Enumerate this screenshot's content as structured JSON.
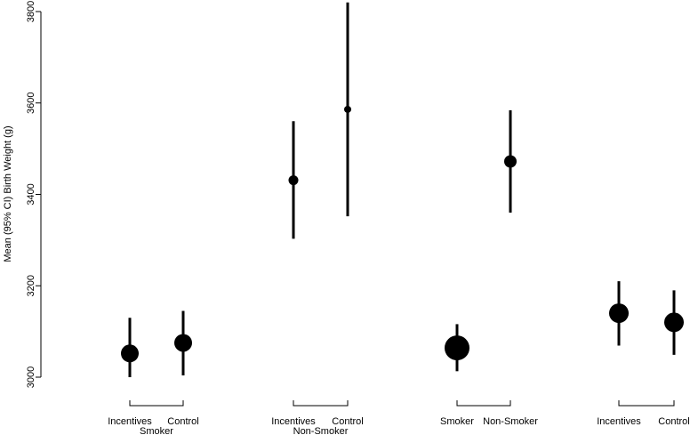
{
  "chart_data": {
    "type": "scatter",
    "subtype": "point-with-confidence-interval",
    "ylabel": "Mean (95% CI) Birth Weight (g)",
    "ylim": [
      3000,
      3800
    ],
    "yticks": [
      3000,
      3200,
      3400,
      3600,
      3800
    ],
    "grid": false,
    "legend": "none",
    "marker_color": "#000000",
    "groups": [
      {
        "label": "Smoker",
        "points": [
          {
            "category": "Incentives",
            "mean": 3052,
            "ci_low": 2975,
            "ci_high": 3130,
            "marker_size": 10
          },
          {
            "category": "Control",
            "mean": 3075,
            "ci_low": 3004,
            "ci_high": 3145,
            "marker_size": 10
          }
        ]
      },
      {
        "label": "Non-Smoker",
        "points": [
          {
            "category": "Incentives",
            "mean": 3431,
            "ci_low": 3303,
            "ci_high": 3560,
            "marker_size": 5.5
          },
          {
            "category": "Control",
            "mean": 3586,
            "ci_low": 3352,
            "ci_high": 3820,
            "marker_size": 4
          }
        ]
      },
      {
        "label": "",
        "points": [
          {
            "category": "Smoker",
            "mean": 3064,
            "ci_low": 3013,
            "ci_high": 3116,
            "marker_size": 14
          },
          {
            "category": "Non-Smoker",
            "mean": 3472,
            "ci_low": 3360,
            "ci_high": 3584,
            "marker_size": 7
          }
        ]
      },
      {
        "label": "",
        "points": [
          {
            "category": "Incentives",
            "mean": 3140,
            "ci_low": 3069,
            "ci_high": 3210,
            "marker_size": 11
          },
          {
            "category": "Control",
            "mean": 3120,
            "ci_low": 3049,
            "ci_high": 3190,
            "marker_size": 11
          }
        ]
      }
    ]
  }
}
